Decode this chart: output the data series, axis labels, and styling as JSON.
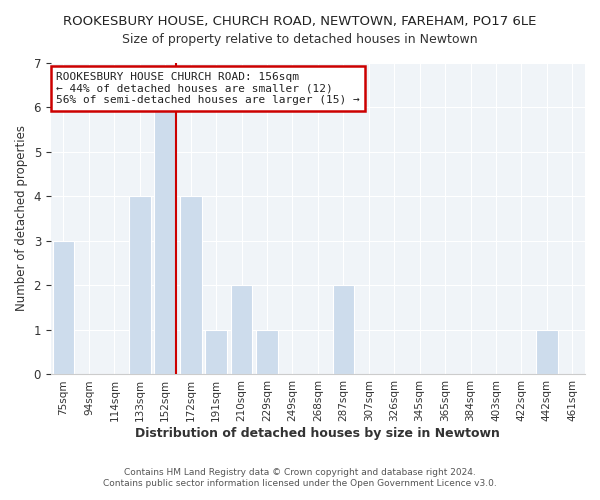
{
  "title": "ROOKESBURY HOUSE, CHURCH ROAD, NEWTOWN, FAREHAM, PO17 6LE",
  "subtitle": "Size of property relative to detached houses in Newtown",
  "xlabel": "Distribution of detached houses by size in Newtown",
  "ylabel": "Number of detached properties",
  "bar_labels": [
    "75sqm",
    "94sqm",
    "114sqm",
    "133sqm",
    "152sqm",
    "172sqm",
    "191sqm",
    "210sqm",
    "229sqm",
    "249sqm",
    "268sqm",
    "287sqm",
    "307sqm",
    "326sqm",
    "345sqm",
    "365sqm",
    "384sqm",
    "403sqm",
    "422sqm",
    "442sqm",
    "461sqm"
  ],
  "bar_values": [
    3,
    0,
    0,
    4,
    6,
    4,
    1,
    2,
    1,
    0,
    0,
    2,
    0,
    0,
    0,
    0,
    0,
    0,
    0,
    1,
    0
  ],
  "bar_color": "#cddcec",
  "marker_index": 4,
  "marker_label_line1": "ROOKESBURY HOUSE CHURCH ROAD: 156sqm",
  "marker_label_line2": "← 44% of detached houses are smaller (12)",
  "marker_label_line3": "56% of semi-detached houses are larger (15) →",
  "marker_color": "#cc0000",
  "ylim": [
    0,
    7
  ],
  "yticks": [
    0,
    1,
    2,
    3,
    4,
    5,
    6,
    7
  ],
  "footnote1": "Contains HM Land Registry data © Crown copyright and database right 2024.",
  "footnote2": "Contains public sector information licensed under the Open Government Licence v3.0.",
  "bg_color": "#f0f4f8"
}
